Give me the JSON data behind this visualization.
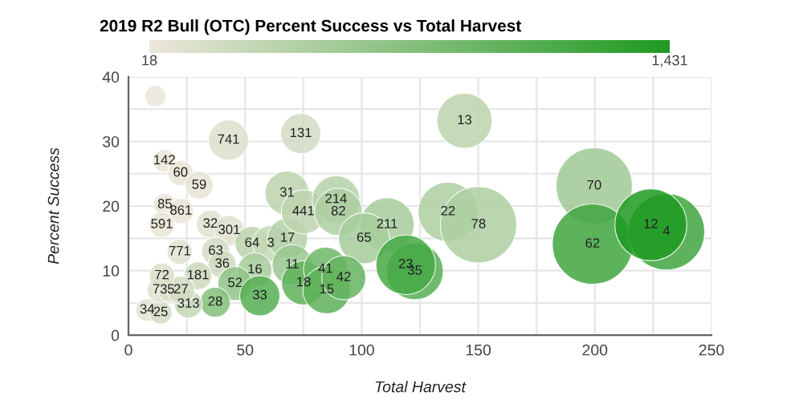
{
  "chart_data": {
    "type": "bubble",
    "title": "2019 R2 Bull (OTC) Percent Success vs Total Harvest",
    "xlabel": "Total Harvest",
    "ylabel": "Percent Success",
    "xlim": [
      0,
      250
    ],
    "xticks": [
      0,
      {
        "value": 25,
        "label": null
      },
      50,
      {
        "value": 75,
        "label": null
      },
      100,
      {
        "value": 125,
        "label": null
      },
      150,
      {
        "value": 175,
        "label": null
      },
      200,
      {
        "value": 225,
        "label": null
      },
      250
    ],
    "ylim": [
      0,
      40
    ],
    "yticks": [
      0,
      {
        "value": 5,
        "label": null
      },
      10,
      {
        "value": 15,
        "label": null
      },
      20,
      {
        "value": 25,
        "label": null
      },
      30,
      {
        "value": 35,
        "label": null
      },
      40
    ],
    "grid": true,
    "relative": false,
    "clim": [
      18,
      1431
    ],
    "cticks": [
      {
        "value": 18,
        "label": "18"
      },
      {
        "value": 1431,
        "label": "1,431"
      }
    ],
    "x": [
      11.5,
      42.9,
      73.9,
      15.4,
      22.3,
      30.3,
      15.6,
      22.5,
      14.3,
      35.1,
      43.2,
      22,
      37.4,
      53,
      61,
      68.2,
      40.2,
      54.2,
      70.2,
      45.7,
      75.1,
      56.3,
      37.2,
      29.8,
      68,
      75,
      89,
      90,
      110.9,
      101,
      84.5,
      85,
      92.3,
      122.8,
      118.9,
      144.1,
      137,
      150.1,
      199.7,
      199,
      230.7,
      224,
      8,
      13.8,
      25.7,
      13.5,
      18.2,
      22.5,
      14.3
    ],
    "values": [
      37,
      30.2,
      31.2,
      27,
      25.1,
      23.2,
      20.2,
      19.2,
      17.1,
      17.2,
      16.2,
      12.9,
      13,
      14.2,
      14.2,
      15,
      11,
      10.1,
      10.9,
      8,
      8.1,
      6.1,
      5.1,
      9.2,
      22,
      19.1,
      21,
      19.1,
      17.1,
      15,
      10.2,
      7,
      8.9,
      9.9,
      10.9,
      33.2,
      19.1,
      17.1,
      23.1,
      14.1,
      16,
      17.1,
      3.9,
      3.5,
      4.8,
      7,
      7,
      7,
      9.2
    ],
    "sizes": [
      0.07,
      0.25,
      0.25,
      0.08,
      0.1,
      0.12,
      0.08,
      0.1,
      0.1,
      0.12,
      0.14,
      0.1,
      0.12,
      0.18,
      0.2,
      0.25,
      0.12,
      0.18,
      0.25,
      0.18,
      0.3,
      0.25,
      0.14,
      0.12,
      0.3,
      0.3,
      0.35,
      0.35,
      0.45,
      0.4,
      0.3,
      0.35,
      0.3,
      0.5,
      0.55,
      0.47,
      0.55,
      0.9,
      0.9,
      1,
      0.9,
      0.8,
      0.08,
      0.08,
      0.12,
      0.1,
      0.1,
      0.12,
      0.1
    ],
    "cvalues": [
      30,
      120,
      200,
      40,
      50,
      60,
      40,
      50,
      50,
      100,
      110,
      90,
      200,
      350,
      300,
      400,
      220,
      500,
      600,
      650,
      1000,
      1050,
      750,
      250,
      350,
      350,
      400,
      450,
      500,
      500,
      900,
      1000,
      950,
      1050,
      1150,
      350,
      450,
      450,
      550,
      1200,
      1200,
      1431,
      80,
      200,
      300,
      120,
      150,
      200,
      150
    ],
    "annotations": [
      {
        "text": "741",
        "x": 42.9,
        "y": 30.2
      },
      {
        "text": "131",
        "x": 73.9,
        "y": 31.2
      },
      {
        "text": "142",
        "x": 15.4,
        "y": 27
      },
      {
        "text": "60",
        "x": 22.3,
        "y": 25.1
      },
      {
        "text": "59",
        "x": 30.3,
        "y": 23.2
      },
      {
        "text": "85",
        "x": 15.6,
        "y": 20.2
      },
      {
        "text": "861",
        "x": 22.5,
        "y": 19.2
      },
      {
        "text": "591",
        "x": 14.3,
        "y": 17.1
      },
      {
        "text": "32",
        "x": 35.1,
        "y": 17.2
      },
      {
        "text": "301",
        "x": 43.2,
        "y": 16.2
      },
      {
        "text": "771",
        "x": 22,
        "y": 12.9
      },
      {
        "text": "63",
        "x": 37.4,
        "y": 13
      },
      {
        "text": "64",
        "x": 53,
        "y": 14.2
      },
      {
        "text": "3",
        "x": 61,
        "y": 14.2
      },
      {
        "text": "17",
        "x": 68.2,
        "y": 15
      },
      {
        "text": "36",
        "x": 40.2,
        "y": 11
      },
      {
        "text": "16",
        "x": 54.2,
        "y": 10.1
      },
      {
        "text": "11",
        "x": 70.2,
        "y": 10.9
      },
      {
        "text": "52",
        "x": 45.7,
        "y": 8
      },
      {
        "text": "18",
        "x": 75.1,
        "y": 8.1
      },
      {
        "text": "33",
        "x": 56.3,
        "y": 6.1
      },
      {
        "text": "28",
        "x": 37.2,
        "y": 5.1
      },
      {
        "text": "181",
        "x": 29.8,
        "y": 9.2
      },
      {
        "text": "31",
        "x": 68,
        "y": 22
      },
      {
        "text": "441",
        "x": 75,
        "y": 19.1
      },
      {
        "text": "214",
        "x": 89,
        "y": 21
      },
      {
        "text": "82",
        "x": 90,
        "y": 19.1
      },
      {
        "text": "211",
        "x": 110.9,
        "y": 17.1
      },
      {
        "text": "65",
        "x": 101,
        "y": 15
      },
      {
        "text": "41",
        "x": 84.5,
        "y": 10.2
      },
      {
        "text": "15",
        "x": 85,
        "y": 7
      },
      {
        "text": "42",
        "x": 92.3,
        "y": 8.9
      },
      {
        "text": "35",
        "x": 122.8,
        "y": 9.9
      },
      {
        "text": "23",
        "x": 118.9,
        "y": 10.9
      },
      {
        "text": "13",
        "x": 144.1,
        "y": 33.2
      },
      {
        "text": "22",
        "x": 137,
        "y": 19.1
      },
      {
        "text": "78",
        "x": 150.1,
        "y": 17.1
      },
      {
        "text": "70",
        "x": 199.7,
        "y": 23.1
      },
      {
        "text": "62",
        "x": 199,
        "y": 14.1
      },
      {
        "text": "4",
        "x": 230.7,
        "y": 16
      },
      {
        "text": "12",
        "x": 224,
        "y": 17.1
      },
      {
        "text": "34",
        "x": 8,
        "y": 3.9
      },
      {
        "text": "25",
        "x": 13.8,
        "y": 3.5
      },
      {
        "text": "313",
        "x": 25.7,
        "y": 4.8
      },
      {
        "text": "73",
        "x": 13.5,
        "y": 7
      },
      {
        "text": "5",
        "x": 18.2,
        "y": 7
      },
      {
        "text": "27",
        "x": 22.5,
        "y": 7
      },
      {
        "text": "72",
        "x": 14.3,
        "y": 9.2
      }
    ]
  }
}
